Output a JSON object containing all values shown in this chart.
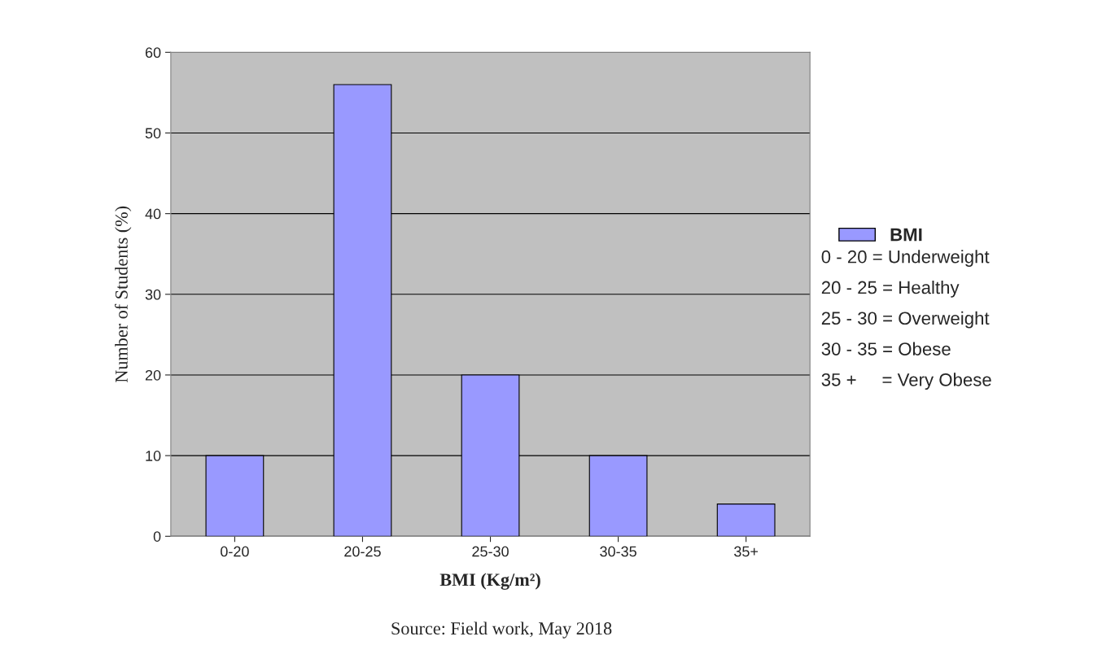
{
  "chart_data": {
    "type": "bar",
    "xlabel": "BMI (Kg/m²)",
    "ylabel": "Number of Students (%)",
    "categories": [
      "0-20",
      "20-25",
      "25-30",
      "30-35",
      "35+"
    ],
    "series": [
      {
        "name": "BMI",
        "color": "#9999ff",
        "values": [
          10,
          56,
          20,
          10,
          4
        ]
      }
    ],
    "ylim": [
      0,
      60
    ],
    "yticks": [
      0,
      10,
      20,
      30,
      40,
      50,
      60
    ],
    "grid": "y",
    "legend": "right",
    "annotations": [
      "0 - 20 = Underweight",
      "20 - 25 = Healthy",
      "25 - 30 = Overweight",
      "30 - 35 = Obese",
      "35 +     = Very Obese",
      "Source: Field work, May 2018"
    ]
  }
}
